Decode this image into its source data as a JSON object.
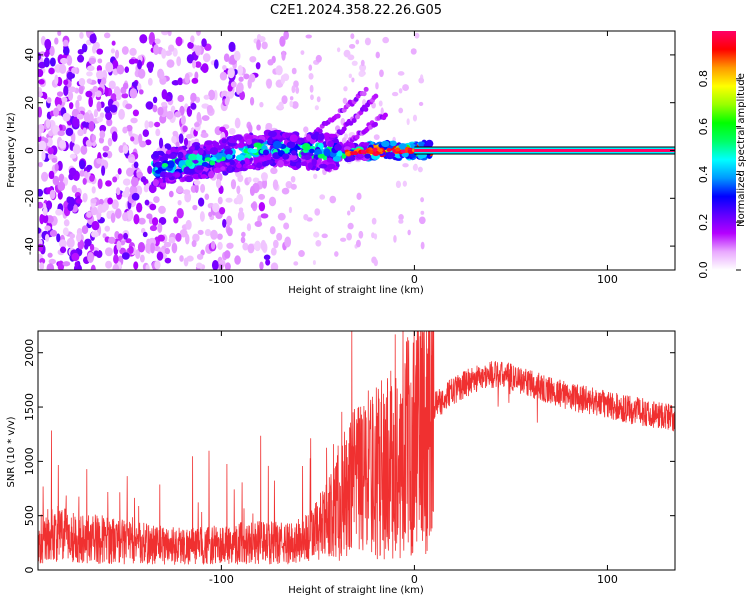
{
  "title": "C2E1.2024.358.22.26.G05",
  "chart_data": [
    {
      "type": "heatmap",
      "xlabel": "Height of straight line (km)",
      "ylabel": "Frequency (Hz)",
      "xlim": [
        -195,
        135
      ],
      "ylim": [
        -50,
        50
      ],
      "xticks": [
        -100,
        0,
        100
      ],
      "xtick_labels": [
        "-100",
        "0",
        "100"
      ],
      "yticks": [
        -40,
        -20,
        0,
        20,
        40
      ],
      "ytick_labels": [
        "-40",
        "-20",
        "0",
        "20",
        "40"
      ],
      "description_points": {
        "tone_line": {
          "x_start": 0,
          "x_end": 135,
          "frequency": 0,
          "amplitude": 1.0
        },
        "drift_track": [
          [
            -135,
            -8
          ],
          [
            -115,
            -5
          ],
          [
            -95,
            -2
          ],
          [
            -75,
            1
          ],
          [
            -55,
            0
          ],
          [
            -35,
            -1
          ],
          [
            -20,
            0
          ],
          [
            -5,
            0
          ],
          [
            8,
            0
          ]
        ],
        "scatter_band": {
          "x_range": [
            -195,
            -65
          ],
          "freq_range": [
            -50,
            50
          ]
        },
        "rising_streaks": [
          [
            -55,
            5,
            -25,
            25
          ],
          [
            -45,
            3,
            -20,
            22
          ],
          [
            -40,
            0,
            -15,
            15
          ]
        ]
      },
      "colorbar": {
        "label": "Normalized spectral amplitude",
        "range": [
          0,
          1
        ],
        "ticks": [
          0.0,
          0.2,
          0.4,
          0.6,
          0.8
        ],
        "tick_labels": [
          "0.0",
          "0.2",
          "0.4",
          "0.6",
          "0.8"
        ],
        "colormap": [
          "#ffffff",
          "#e9a8ff",
          "#b400ff",
          "#6000ff",
          "#0000ff",
          "#0099ff",
          "#00ffff",
          "#00ff66",
          "#00ff00",
          "#99ff00",
          "#ffff00",
          "#ff9900",
          "#ff0000",
          "#ff0066"
        ]
      }
    },
    {
      "type": "line",
      "xlabel": "Height of straight line (km)",
      "ylabel": "SNR (10 * v/v)",
      "xlim": [
        -195,
        135
      ],
      "ylim": [
        0,
        2200
      ],
      "xticks": [
        -100,
        0,
        100
      ],
      "xtick_labels": [
        "-100",
        "0",
        "100"
      ],
      "yticks": [
        0,
        500,
        1000,
        1500,
        2000
      ],
      "ytick_labels": [
        "0",
        "500",
        "1000",
        "1500",
        "2000"
      ],
      "color": "#f03030",
      "envelope": [
        [
          -195,
          300
        ],
        [
          -185,
          330
        ],
        [
          -175,
          300
        ],
        [
          -160,
          280
        ],
        [
          -145,
          250
        ],
        [
          -130,
          230
        ],
        [
          -115,
          220
        ],
        [
          -100,
          230
        ],
        [
          -85,
          260
        ],
        [
          -75,
          250
        ],
        [
          -65,
          240
        ],
        [
          -55,
          300
        ],
        [
          -45,
          450
        ],
        [
          -38,
          650
        ],
        [
          -30,
          800
        ],
        [
          -22,
          900
        ],
        [
          -15,
          950
        ],
        [
          -8,
          1000
        ],
        [
          0,
          1250
        ],
        [
          10,
          1500
        ],
        [
          20,
          1650
        ],
        [
          30,
          1750
        ],
        [
          40,
          1800
        ],
        [
          50,
          1780
        ],
        [
          60,
          1720
        ],
        [
          70,
          1650
        ],
        [
          80,
          1600
        ],
        [
          90,
          1560
        ],
        [
          100,
          1520
        ],
        [
          110,
          1480
        ],
        [
          120,
          1450
        ],
        [
          135,
          1400
        ]
      ]
    }
  ]
}
